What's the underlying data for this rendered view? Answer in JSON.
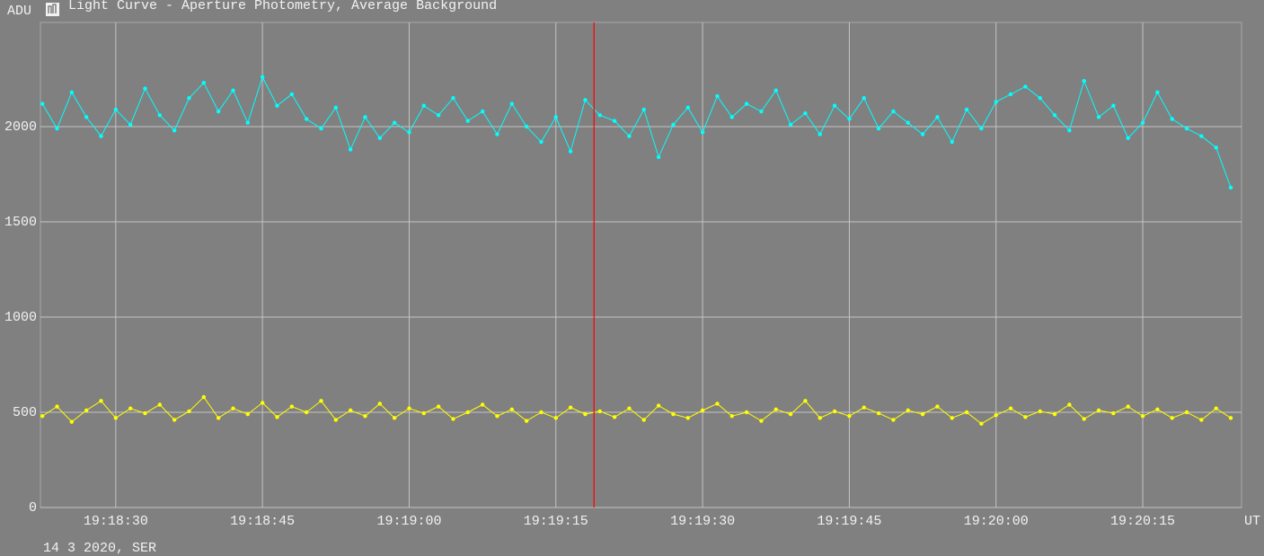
{
  "chart_data": {
    "type": "line",
    "title": "Light Curve - Aperture Photometry, Average Background",
    "y_label": "ADU",
    "x_unit": "UT",
    "footer": "14 3 2020, SER",
    "x": [
      22.5,
      24,
      25.5,
      27,
      28.5,
      30,
      31.5,
      33,
      34.5,
      36,
      37.5,
      39,
      40.5,
      42,
      43.5,
      45,
      46.5,
      48,
      49.5,
      51,
      52.5,
      54,
      55.5,
      57,
      58.5,
      60,
      61.5,
      63,
      64.5,
      66,
      67.5,
      69,
      70.5,
      72,
      73.5,
      75,
      76.5,
      78,
      79.5,
      81,
      82.5,
      84,
      85.5,
      87,
      88.5,
      90,
      91.5,
      93,
      94.5,
      96,
      97.5,
      99,
      100.5,
      102,
      103.5,
      105,
      106.5,
      108,
      109.5,
      111,
      112.5,
      114,
      115.5,
      117,
      118.5,
      120,
      121.5,
      123,
      124.5,
      126,
      127.5,
      129,
      130.5,
      132,
      133.5,
      135,
      136.5,
      138,
      139.5,
      141,
      142.5,
      144
    ],
    "series": [
      {
        "color": "#00ffff",
        "values": [
          2120,
          1990,
          2180,
          2050,
          1950,
          2090,
          2010,
          2200,
          2060,
          1980,
          2150,
          2230,
          2080,
          2190,
          2020,
          2260,
          2110,
          2170,
          2040,
          1990,
          2100,
          1880,
          2050,
          1940,
          2020,
          1970,
          2110,
          2060,
          2150,
          2030,
          2080,
          1960,
          2120,
          2000,
          1920,
          2050,
          1870,
          2140,
          2060,
          2030,
          1950,
          2090,
          1840,
          2010,
          2100,
          1970,
          2160,
          2050,
          2120,
          2080,
          2190,
          2010,
          2070,
          1960,
          2110,
          2040,
          2150,
          1990,
          2080,
          2020,
          1960,
          2050,
          1920,
          2090,
          1990,
          2130,
          2170,
          2210,
          2150,
          2060,
          1980,
          2240,
          2050,
          2110,
          1940,
          2020,
          2180,
          2040,
          1990,
          1950,
          1890,
          1680
        ]
      },
      {
        "color": "#ffff00",
        "values": [
          480,
          530,
          450,
          510,
          560,
          470,
          520,
          495,
          540,
          460,
          505,
          580,
          470,
          520,
          490,
          550,
          475,
          530,
          500,
          560,
          460,
          510,
          480,
          545,
          470,
          520,
          495,
          530,
          465,
          500,
          540,
          480,
          515,
          455,
          500,
          470,
          525,
          490,
          505,
          475,
          520,
          460,
          535,
          490,
          470,
          510,
          545,
          480,
          500,
          455,
          515,
          490,
          560,
          470,
          505,
          480,
          525,
          495,
          460,
          510,
          490,
          530,
          470,
          500,
          440,
          485,
          520,
          475,
          505,
          490,
          540,
          465,
          510,
          495,
          530,
          480,
          515,
          470,
          500,
          460,
          520,
          470
        ]
      }
    ],
    "xlim": [
      22.3,
      145.1
    ],
    "ylim": [
      0,
      2547
    ],
    "xticks": [
      {
        "value": 30,
        "label": "19:18:30"
      },
      {
        "value": 45,
        "label": "19:18:45"
      },
      {
        "value": 60,
        "label": "19:19:00"
      },
      {
        "value": 75,
        "label": "19:19:15"
      },
      {
        "value": 90,
        "label": "19:19:30"
      },
      {
        "value": 105,
        "label": "19:19:45"
      },
      {
        "value": 120,
        "label": "19:20:00"
      },
      {
        "value": 135,
        "label": "19:20:15"
      }
    ],
    "yticks": [
      0,
      500,
      1000,
      1500,
      2000
    ],
    "grid": true,
    "cursor_x": 78.9,
    "cursor_color": "#ff0000",
    "background": "#808080"
  }
}
